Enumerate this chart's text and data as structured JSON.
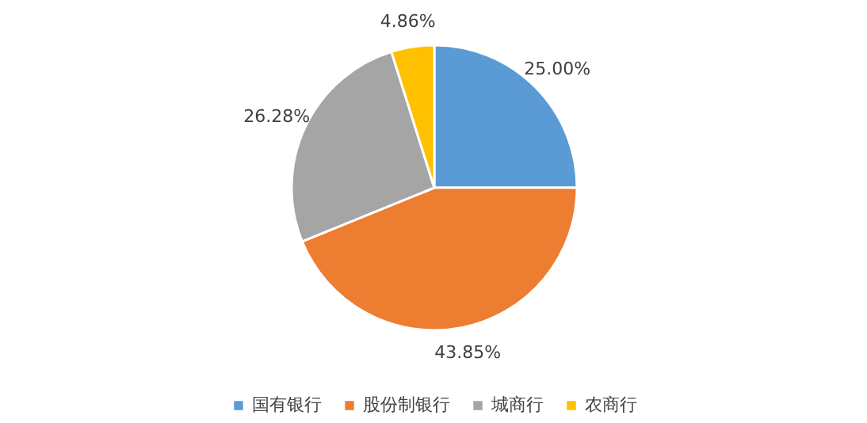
{
  "chart_data": {
    "type": "pie",
    "categories": [
      "国有银行",
      "股份制银行",
      "城商行",
      "农商行"
    ],
    "values": [
      25.0,
      43.85,
      26.28,
      4.86
    ],
    "colors": [
      "#5b9bd5",
      "#ed7d31",
      "#a5a5a5",
      "#ffc000"
    ],
    "value_labels": [
      "25.00%",
      "43.85%",
      "26.28%",
      "4.86%"
    ],
    "legend": "bottom"
  }
}
